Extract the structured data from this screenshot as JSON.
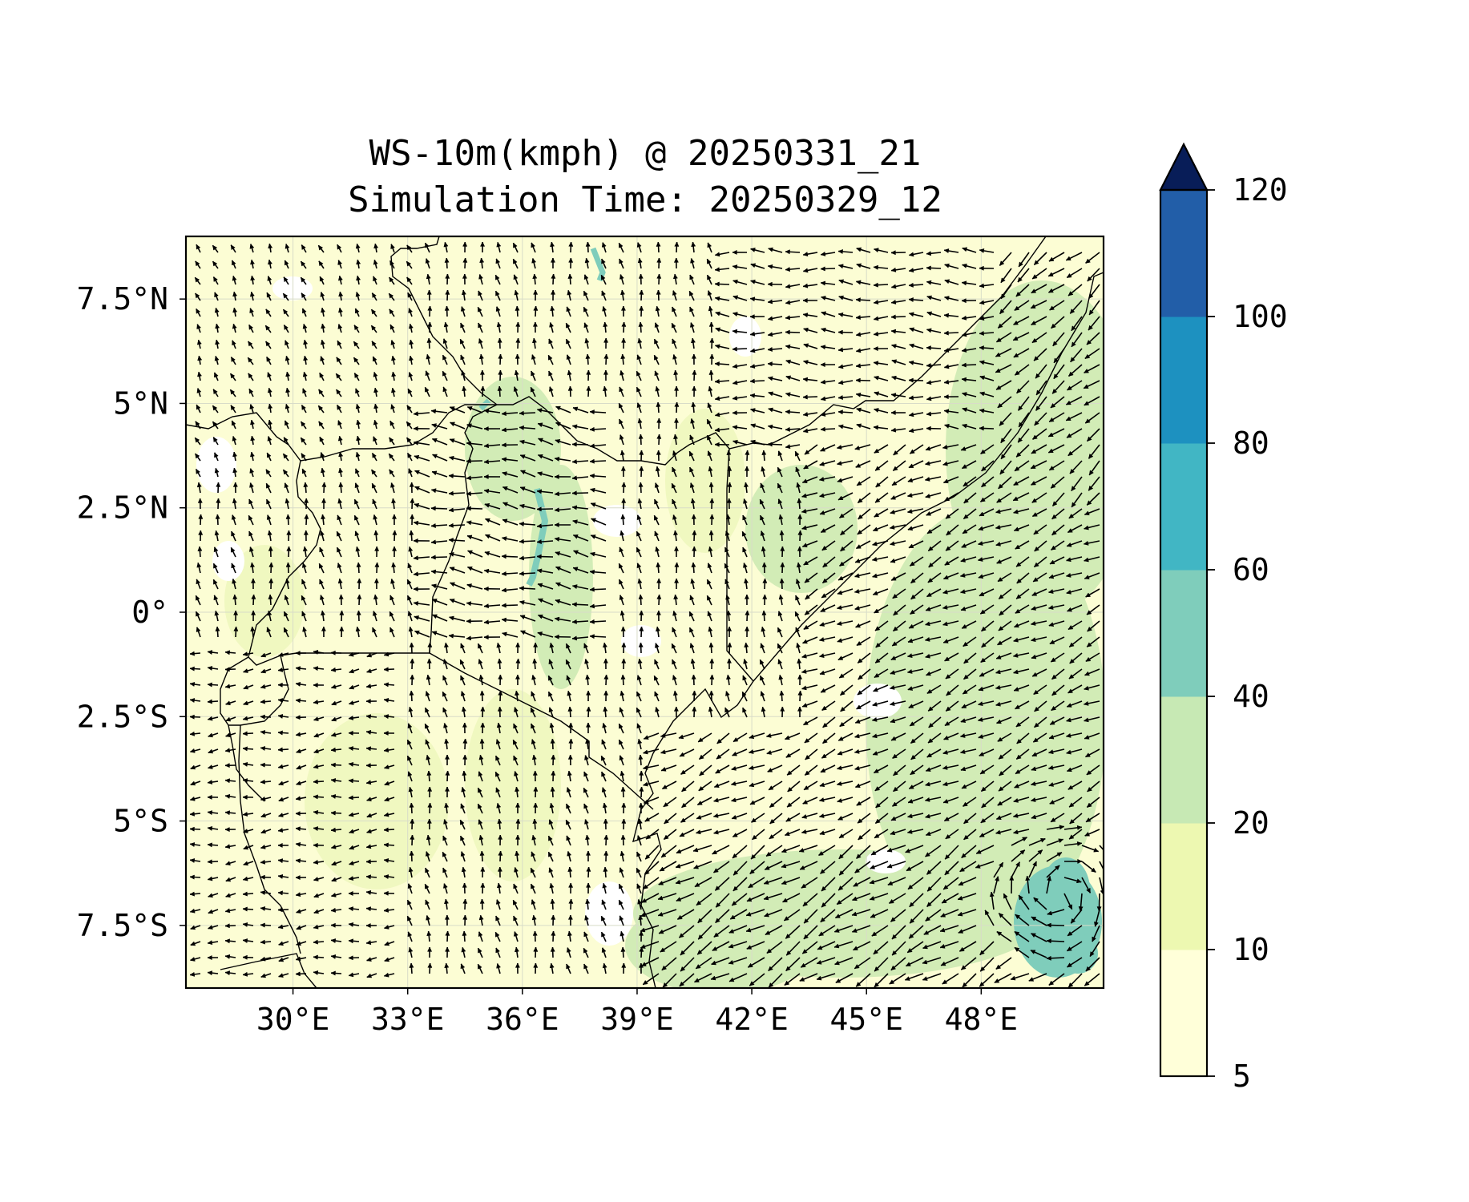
{
  "title": "WS-10m(kmph) @ 20250331_21",
  "subtitle": "Simulation Time: 20250329_12",
  "map": {
    "lon_range": [
      27.2,
      51.2
    ],
    "lat_range": [
      -9.0,
      9.0
    ],
    "x_ticks": [
      "30°E",
      "33°E",
      "36°E",
      "39°E",
      "42°E",
      "45°E",
      "48°E"
    ],
    "x_tick_values": [
      30,
      33,
      36,
      39,
      42,
      45,
      48
    ],
    "y_ticks": [
      "7.5°N",
      "5°N",
      "2.5°N",
      "0°",
      "2.5°S",
      "5°S",
      "7.5°S"
    ],
    "y_tick_values": [
      7.5,
      5,
      2.5,
      0,
      -2.5,
      -5,
      -7.5
    ],
    "gridlines": true,
    "field": "10 m wind speed (filled contours) with wind direction arrows"
  },
  "colorbar": {
    "orientation": "vertical",
    "extend": "max",
    "levels": [
      "5",
      "10",
      "20",
      "40",
      "60",
      "80",
      "100",
      "120"
    ],
    "colors": [
      "#ffffd9",
      "#edf8b1",
      "#c7e9b4",
      "#7fcdbb",
      "#41b6c4",
      "#1d91c0",
      "#225ea8",
      "#253494",
      "#081d58"
    ]
  },
  "colors": {
    "land_base": "#fcfdd4",
    "light": "#f0f8c0",
    "moderate": "#d2ecb6",
    "strong": "#7fcdbb",
    "white_patch": "#ffffff",
    "border": "#000000"
  }
}
